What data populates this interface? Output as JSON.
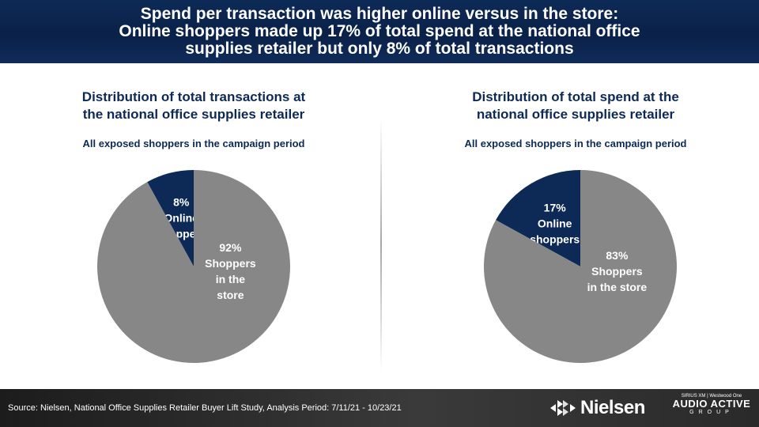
{
  "header": {
    "line1": "Spend per transaction was higher online versus in the store:",
    "line2": "Online shoppers made up 17% of total spend at the national office",
    "line3": "supplies retailer but only 8% of total transactions"
  },
  "colors": {
    "navy": "#0d2a56",
    "gray": "#878787",
    "text": "#ffffff"
  },
  "chart_data": [
    {
      "type": "pie",
      "title_line1": "Distribution of total transactions at",
      "title_line2": "the national office supplies retailer",
      "subtitle": "All exposed shoppers in the campaign period",
      "slices": [
        {
          "value": 8,
          "label_lines": [
            "8%",
            "Online",
            "shoppers"
          ],
          "color": "#0d2a56"
        },
        {
          "value": 92,
          "label_lines": [
            "92%",
            "Shoppers",
            "in the",
            "store"
          ],
          "color": "#878787"
        }
      ]
    },
    {
      "type": "pie",
      "title_line1": "Distribution of total spend at the",
      "title_line2": "national office supplies retailer",
      "subtitle": "All exposed shoppers in the campaign period",
      "slices": [
        {
          "value": 17,
          "label_lines": [
            "17%",
            "Online",
            "shoppers"
          ],
          "color": "#0d2a56"
        },
        {
          "value": 83,
          "label_lines": [
            "83%",
            "Shoppers",
            "in the store"
          ],
          "color": "#878787"
        }
      ]
    }
  ],
  "footer": {
    "source": "Source: Nielsen, National Office Supplies Retailer Buyer Lift Study, Analysis Period: 7/11/21 - 10/23/21",
    "nielsen_logo": "Nielsen",
    "aag_top": "SIRIUS XM | Westwood One",
    "aag_main": "AUDIO ACTIVE",
    "aag_group": "GROUP"
  }
}
